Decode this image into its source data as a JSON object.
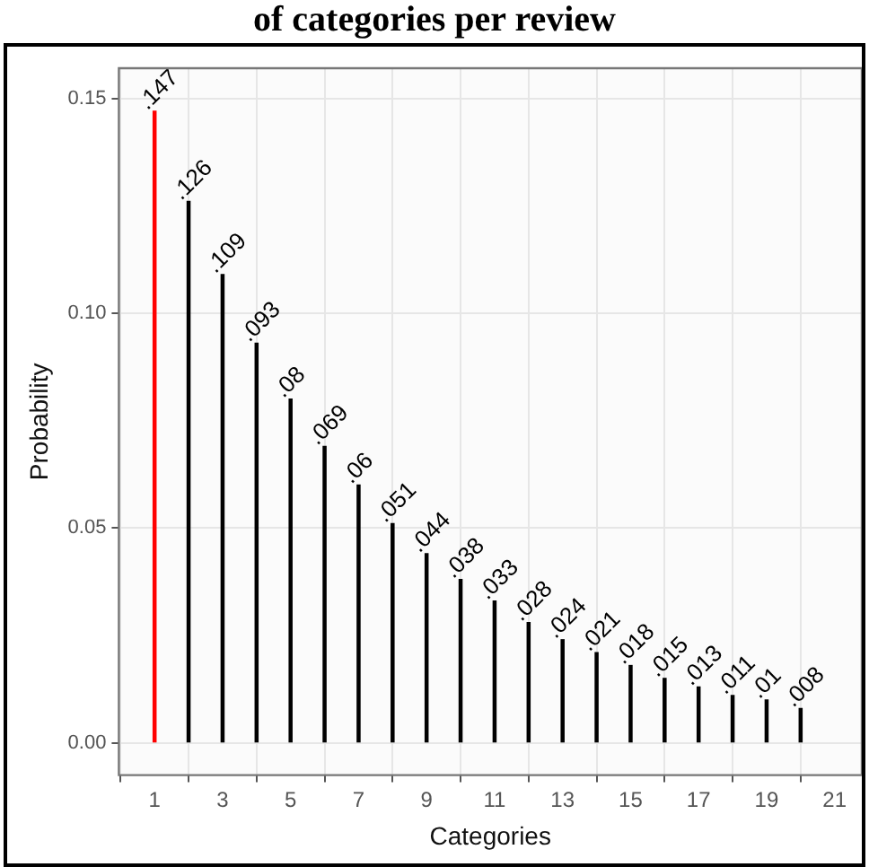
{
  "chart_data": {
    "type": "bar",
    "title": "of categories per review",
    "xlabel": "Categories",
    "ylabel": "Probability",
    "x": [
      1,
      2,
      3,
      4,
      5,
      6,
      7,
      8,
      9,
      10,
      11,
      12,
      13,
      14,
      15,
      16,
      17,
      18,
      19,
      20
    ],
    "values": [
      0.147,
      0.126,
      0.109,
      0.093,
      0.08,
      0.069,
      0.06,
      0.051,
      0.044,
      0.038,
      0.033,
      0.028,
      0.024,
      0.021,
      0.018,
      0.015,
      0.013,
      0.011,
      0.01,
      0.008
    ],
    "colors": [
      "#ff0000",
      "#000000",
      "#000000",
      "#000000",
      "#000000",
      "#000000",
      "#000000",
      "#000000",
      "#000000",
      "#000000",
      "#000000",
      "#000000",
      "#000000",
      "#000000",
      "#000000",
      "#000000",
      "#000000",
      "#000000",
      "#000000",
      "#000000"
    ],
    "value_labels": [
      ".147",
      ".126",
      ".109",
      ".093",
      ".08",
      ".069",
      ".06",
      ".051",
      ".044",
      ".038",
      ".033",
      ".028",
      ".024",
      ".021",
      ".018",
      ".015",
      ".013",
      ".011",
      ".01",
      ".008"
    ],
    "xlim": [
      -0.05,
      21.8
    ],
    "xticks": [
      1,
      3,
      5,
      7,
      9,
      11,
      13,
      15,
      17,
      19,
      21
    ],
    "ylim": [
      -0.0075,
      0.157
    ],
    "yticks": [
      {
        "value": 0,
        "label": "0.00"
      },
      {
        "value": 0.05,
        "label": "0.05"
      },
      {
        "value": 0.1,
        "label": "0.10"
      },
      {
        "value": 0.15,
        "label": "0.15"
      }
    ],
    "grid": true
  }
}
